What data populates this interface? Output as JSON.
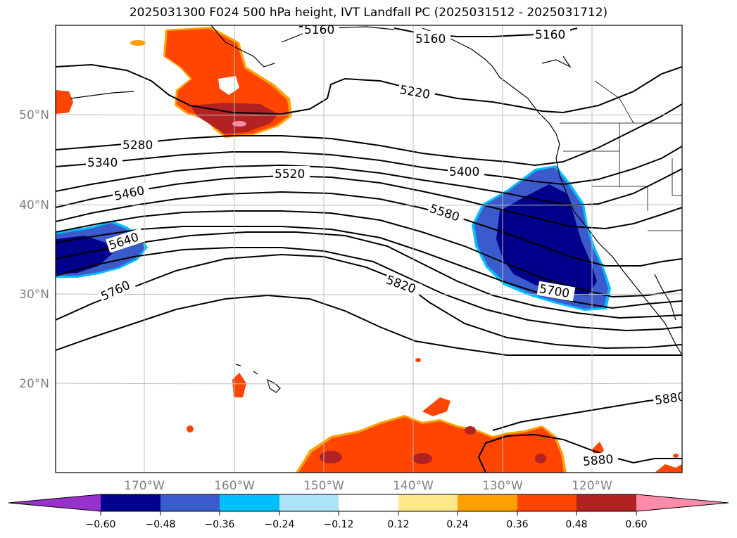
{
  "title": "2025031300 F024 500 hPa height, IVT Landfall PC (2025031512 - 2025031712)",
  "lat_labels": [
    "50°N",
    "40°N",
    "30°N",
    "20°N"
  ],
  "lon_labels": [
    "170°W",
    "160°W",
    "150°W",
    "140°W",
    "130°W",
    "120°W"
  ],
  "contour_labels": [
    "5160",
    "5160",
    "5160",
    "5220",
    "5280",
    "5340",
    "5460",
    "5520",
    "5400",
    "5580",
    "5640",
    "5760",
    "5820",
    "5700",
    "5880",
    "5880"
  ],
  "colorbar": {
    "tick_labels": [
      "−0.60",
      "−0.48",
      "−0.36",
      "−0.24",
      "−0.12",
      "0.12",
      "0.24",
      "0.36",
      "0.48",
      "0.60"
    ],
    "colors": [
      "#9932cc",
      "#00008b",
      "#3b5bcc",
      "#00bfff",
      "#ade3fa",
      "#ffffff",
      "#ffe88a",
      "#ffa000",
      "#ff4500",
      "#b22222",
      "#ff8aaa"
    ]
  }
}
